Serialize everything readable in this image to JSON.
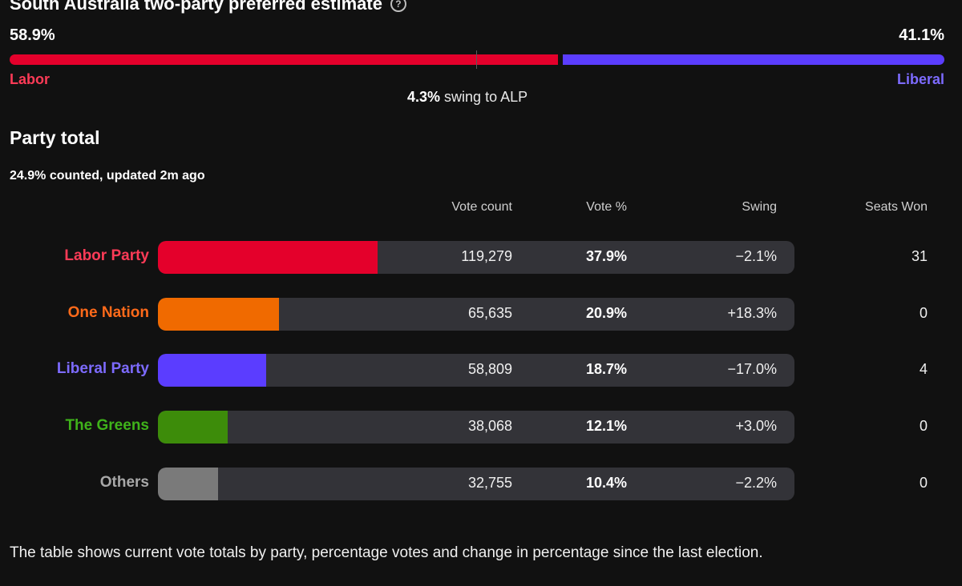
{
  "tpp": {
    "title": "South Australia two-party preferred estimate",
    "help_icon": "?",
    "left_pct": "58.9%",
    "right_pct": "41.1%",
    "left_share": 58.9,
    "right_share": 41.1,
    "left_label": "Labor",
    "right_label": "Liberal",
    "left_color": "#e4002b",
    "right_color": "#5b3dff",
    "swing_value": "4.3%",
    "swing_text": "swing to ALP"
  },
  "party_total": {
    "heading": "Party total",
    "counted": "24.9% counted, updated 2m ago",
    "columns": {
      "vote_count": "Vote count",
      "vote_pct": "Vote %",
      "swing": "Swing",
      "seats_won": "Seats Won"
    },
    "rows": [
      {
        "party": "Labor Party",
        "color": "#e4002b",
        "label_color": "#ff3b57",
        "vote_count": "119,279",
        "vote_pct": "37.9%",
        "pct_value": 37.9,
        "swing": "−2.1%",
        "seats": "31"
      },
      {
        "party": "One Nation",
        "color": "#f06a00",
        "label_color": "#ff6a1a",
        "vote_count": "65,635",
        "vote_pct": "20.9%",
        "pct_value": 20.9,
        "swing": "+18.3%",
        "seats": "0"
      },
      {
        "party": "Liberal Party",
        "color": "#5b3dff",
        "label_color": "#7d6bff",
        "vote_count": "58,809",
        "vote_pct": "18.7%",
        "pct_value": 18.7,
        "swing": "−17.0%",
        "seats": "4"
      },
      {
        "party": "The Greens",
        "color": "#3d8c0a",
        "label_color": "#3fb31a",
        "vote_count": "38,068",
        "vote_pct": "12.1%",
        "pct_value": 12.1,
        "swing": "+3.0%",
        "seats": "0"
      },
      {
        "party": "Others",
        "color": "#7a7a7a",
        "label_color": "#a8a8a8",
        "vote_count": "32,755",
        "vote_pct": "10.4%",
        "pct_value": 10.4,
        "swing": "−2.2%",
        "seats": "0"
      }
    ]
  },
  "footnote": "The table shows current vote totals by party, percentage votes and change in percentage since the last election."
}
